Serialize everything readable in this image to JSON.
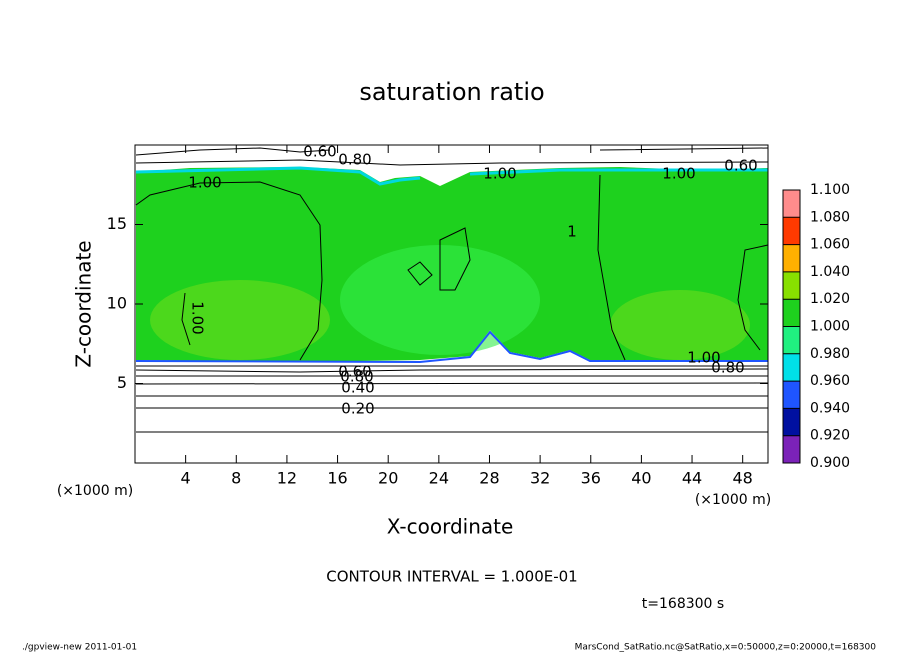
{
  "chart_data": {
    "type": "contour",
    "title": "saturation ratio",
    "x_label": "X-coordinate",
    "y_label": "Z-coordinate",
    "x_unit": "(×1000 m)",
    "y_unit": "(×1000 m)",
    "xlim": [
      0,
      50
    ],
    "xticks": [
      4,
      8,
      12,
      16,
      20,
      24,
      28,
      32,
      36,
      40,
      44,
      48
    ],
    "ylim": [
      0,
      20
    ],
    "yticks": [
      5,
      10,
      15
    ],
    "clim": [
      0.9,
      1.1
    ],
    "cticks": [
      {
        "value": 0.9,
        "label": "0.900"
      },
      {
        "value": 0.92,
        "label": "0.920"
      },
      {
        "value": 0.94,
        "label": "0.940"
      },
      {
        "value": 0.96,
        "label": "0.960"
      },
      {
        "value": 0.98,
        "label": "0.980"
      },
      {
        "value": 1.0,
        "label": "1.000"
      },
      {
        "value": 1.02,
        "label": "1.020"
      },
      {
        "value": 1.04,
        "label": "1.040"
      },
      {
        "value": 1.06,
        "label": "1.060"
      },
      {
        "value": 1.08,
        "label": "1.080"
      },
      {
        "value": 1.1,
        "label": "1.100"
      }
    ],
    "colors": [
      "#7b22b8",
      "#0010a0",
      "#1f55ff",
      "#00e0e8",
      "#20f080",
      "#1ed11e",
      "#88e000",
      "#ffb000",
      "#ff3a00",
      "#ff8c8c"
    ],
    "contour_labels": [
      "0.60",
      "0.80",
      "1.00",
      "0.60",
      "1.00",
      "1.00",
      "1",
      "1.00",
      "1.00",
      "0.80",
      "0.60",
      "0.80",
      "0.40",
      "0.20"
    ],
    "contour_interval": "CONTOUR INTERVAL = 1.000E-01",
    "time_label": "t=168300 s",
    "footer_left": "./gpview-new  2011-01-01",
    "footer_right": "MarsCond_SatRatio.nc@SatRatio,x=0:50000,z=0:20000,t=168300"
  }
}
